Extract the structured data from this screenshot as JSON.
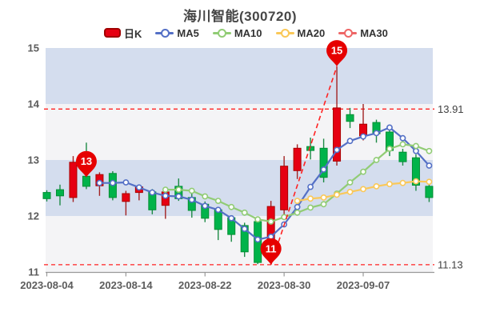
{
  "legend": {
    "items": [
      {
        "label": "日K",
        "type": "rect",
        "color": "#e60012",
        "border": "#a00000"
      },
      {
        "label": "MA5",
        "type": "line",
        "color": "#5470c6"
      },
      {
        "label": "MA10",
        "type": "line",
        "color": "#91cc75"
      },
      {
        "label": "MA20",
        "type": "line",
        "color": "#fac858"
      },
      {
        "label": "MA30",
        "type": "line",
        "color": "#ee6666"
      }
    ]
  },
  "chart_data": {
    "type": "candlestick",
    "title": "海川智能(300720)",
    "ylim": [
      11,
      15
    ],
    "y_ticks": [
      11,
      12,
      13,
      14,
      15
    ],
    "x_tick_labels": [
      "2023-08-04",
      "2023-08-14",
      "2023-08-22",
      "2023-08-30",
      "2023-09-07"
    ],
    "x_tick_indices": [
      0,
      6,
      12,
      18,
      24
    ],
    "candles_format": [
      "open",
      "close",
      "low",
      "high"
    ],
    "candles": [
      [
        12.42,
        12.31,
        12.26,
        12.46
      ],
      [
        12.47,
        12.36,
        12.19,
        12.56
      ],
      [
        12.33,
        12.96,
        12.25,
        13.07
      ],
      [
        12.71,
        12.53,
        12.48,
        13.31
      ],
      [
        12.54,
        12.74,
        12.36,
        12.78
      ],
      [
        12.76,
        12.33,
        12.28,
        12.8
      ],
      [
        12.26,
        12.4,
        12.01,
        12.45
      ],
      [
        12.42,
        12.52,
        12.28,
        12.56
      ],
      [
        12.43,
        12.11,
        12.03,
        12.48
      ],
      [
        12.19,
        12.43,
        11.95,
        12.47
      ],
      [
        12.53,
        12.31,
        12.27,
        12.67
      ],
      [
        12.33,
        12.1,
        11.97,
        12.4
      ],
      [
        12.21,
        11.96,
        11.89,
        12.26
      ],
      [
        12.11,
        11.76,
        11.57,
        12.15
      ],
      [
        11.97,
        11.67,
        11.54,
        12.0
      ],
      [
        11.83,
        11.36,
        11.27,
        11.88
      ],
      [
        11.9,
        11.17,
        11.14,
        11.93
      ],
      [
        11.4,
        12.17,
        11.13,
        12.27
      ],
      [
        12.11,
        12.89,
        12.02,
        13.07
      ],
      [
        12.81,
        13.21,
        12.66,
        13.28
      ],
      [
        13.24,
        13.17,
        13.01,
        13.4
      ],
      [
        13.21,
        12.69,
        12.6,
        13.38
      ],
      [
        12.98,
        13.93,
        12.9,
        14.67
      ],
      [
        13.81,
        13.69,
        13.57,
        13.93
      ],
      [
        13.43,
        13.64,
        13.35,
        14.0
      ],
      [
        13.67,
        13.47,
        13.31,
        13.72
      ],
      [
        13.5,
        13.17,
        13.07,
        13.63
      ],
      [
        13.14,
        12.97,
        12.9,
        13.2
      ],
      [
        13.04,
        12.55,
        12.45,
        13.1
      ],
      [
        12.53,
        12.33,
        12.25,
        12.6
      ]
    ],
    "series": [
      {
        "name": "MA5",
        "color": "#5470c6",
        "start": 4,
        "values": [
          12.59,
          12.59,
          12.6,
          12.51,
          12.42,
          12.36,
          12.35,
          12.29,
          12.18,
          12.11,
          11.96,
          11.77,
          11.58,
          11.63,
          11.85,
          12.16,
          12.52,
          12.83,
          13.18,
          13.34,
          13.42,
          13.48,
          13.58,
          13.39,
          13.16,
          12.9
        ]
      },
      {
        "name": "MA10",
        "color": "#91cc75",
        "start": 9,
        "values": [
          12.47,
          12.47,
          12.45,
          12.35,
          12.27,
          12.16,
          12.06,
          11.94,
          11.9,
          11.98,
          12.06,
          12.15,
          12.21,
          12.4,
          12.6,
          12.79,
          13.0,
          13.2,
          13.28,
          13.25,
          13.16
        ]
      },
      {
        "name": "MA20",
        "color": "#fac858",
        "start": 19,
        "values": [
          12.27,
          12.31,
          12.33,
          12.38,
          12.43,
          12.48,
          12.53,
          12.57,
          12.59,
          12.62,
          12.61
        ]
      },
      {
        "name": "MA30",
        "color": "#ee6666",
        "start": 29,
        "values": []
      }
    ],
    "ref_lines": [
      {
        "value": 13.91,
        "label": "13.91"
      },
      {
        "value": 11.13,
        "label": "11.13"
      }
    ],
    "markers": [
      {
        "label": "13",
        "index": 3,
        "value": 12.69
      },
      {
        "label": "11",
        "index": 17,
        "value": 11.13
      },
      {
        "label": "15",
        "index": 22,
        "value": 14.67
      }
    ],
    "trend_line": {
      "from": {
        "index": 17,
        "value": 11.13
      },
      "to": {
        "index": 22,
        "value": 14.67
      }
    },
    "colors": {
      "up": "#e60012",
      "up_border": "#aa0000",
      "up_wick": "#a22222",
      "down": "#00b34a",
      "down_border": "#008f33",
      "down_wick": "#1d8a45",
      "band_blue": "#d4ddee",
      "band_gray": "#f4f4f6",
      "ref_line": "#ff2222",
      "marker": "#e60000",
      "axis_line": "#999999",
      "axis_text": "#5c5c5c",
      "ref_text": "#404040"
    }
  }
}
